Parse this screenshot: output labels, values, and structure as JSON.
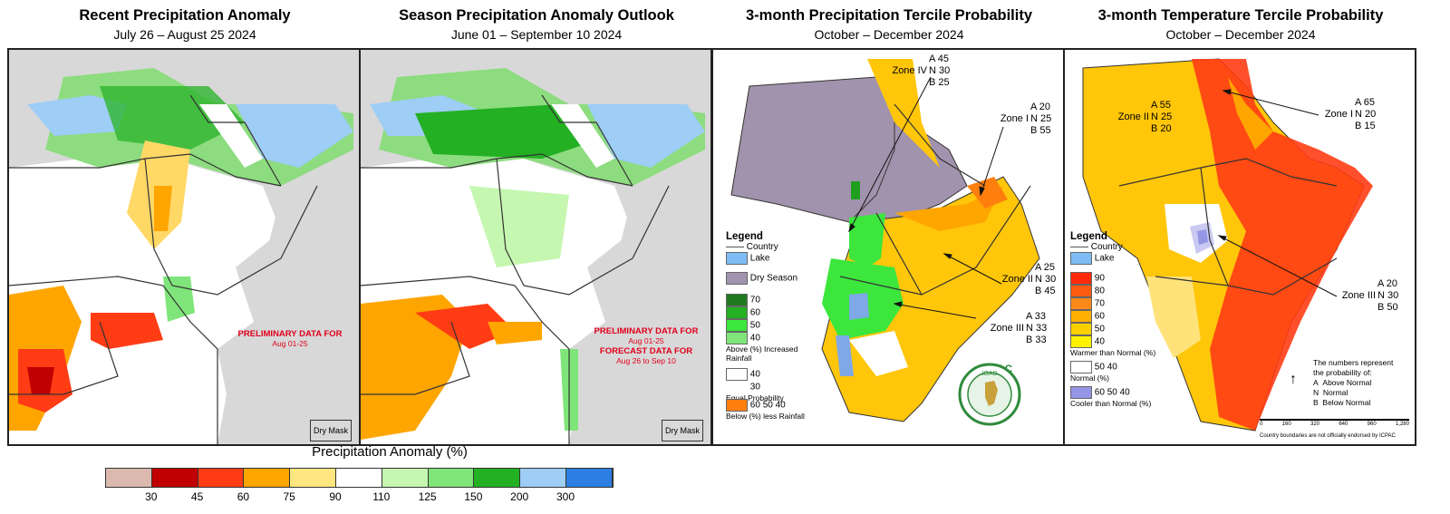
{
  "panels": [
    {
      "title": "Recent Precipitation Anomaly",
      "subtitle": "July 26 – August 25 2024",
      "note_title": "PRELIMINARY DATA FOR",
      "note_range": "Aug 01-25",
      "dry_mask": "Dry Mask"
    },
    {
      "title": "Season Precipitation Anomaly Outlook",
      "subtitle": "June 01 – September 10 2024",
      "note_title": "PRELIMINARY DATA FOR",
      "note_range": "Aug 01-25",
      "note2_title": "FORECAST DATA FOR",
      "note2_range": "Aug 26 to Sep 10",
      "dry_mask": "Dry Mask"
    },
    {
      "title": "3-month Precipitation Tercile Probability",
      "subtitle": "October – December 2024",
      "legend": {
        "title": "Legend",
        "country": "Country",
        "lake": "Lake",
        "dry": "Dry Season",
        "above_vals": [
          "70",
          "60",
          "50",
          "40"
        ],
        "above_label": "Above (%) Increased Rainfall",
        "equal_vals": [
          "40",
          "30"
        ],
        "equal_label": "Equal Probability",
        "below_vals": [
          "60",
          "50",
          "40"
        ],
        "below_label": "Below (%) less Rainfall"
      },
      "zones": [
        {
          "name": "Zone IV",
          "a": "A 45",
          "n": "N 30",
          "b": "B 25"
        },
        {
          "name": "Zone I",
          "a": "A 20",
          "n": "N 25",
          "b": "B 55"
        },
        {
          "name": "Zone II",
          "a": "A 25",
          "n": "N 30",
          "b": "B 45"
        },
        {
          "name": "Zone III",
          "a": "A 33",
          "n": "N 33",
          "b": "B 33"
        }
      ],
      "logo_top": "IGAD",
      "logo_bottom": "ICPAC"
    },
    {
      "title": "3-month Temperature Tercile Probability",
      "subtitle": "October – December 2024",
      "legend": {
        "title": "Legend",
        "country": "Country",
        "lake": "Lake",
        "warm_vals": [
          "90",
          "80",
          "70",
          "60",
          "50",
          "40"
        ],
        "warm_label": "Warmer than Normal (%)",
        "normal_vals": [
          "50",
          "40"
        ],
        "normal_label": "Normal (%)",
        "cool_vals": [
          "60",
          "50",
          "40"
        ],
        "cool_label": "Cooler than Normal (%)"
      },
      "zones": [
        {
          "name": "Zone II",
          "a": "A 55",
          "n": "N 25",
          "b": "B 20"
        },
        {
          "name": "Zone I",
          "a": "A 65",
          "n": "N 20",
          "b": "B 15"
        },
        {
          "name": "Zone III",
          "a": "A 20",
          "n": "N 30",
          "b": "B 50"
        }
      ],
      "explain": {
        "line1": "The numbers represent",
        "line2": "the probability of:",
        "a": "Above Normal",
        "n": "Normal",
        "b": "Below Normal"
      },
      "scale": [
        "0",
        "160",
        "320",
        "640",
        "960",
        "1,280"
      ],
      "disclaimer": "Country boundaries are not officially endorsed by ICPAC"
    }
  ],
  "colorbar": {
    "title": "Precipitation Anomaly (%)",
    "ticks": [
      "30",
      "45",
      "60",
      "75",
      "90",
      "110",
      "125",
      "150",
      "200",
      "300"
    ],
    "colors": [
      "#dbb9ae",
      "#c00000",
      "#ff3c14",
      "#ffa500",
      "#ffe680",
      "#ffffff",
      "#c6f7b0",
      "#7fe57a",
      "#23b023",
      "#9ecdf5",
      "#2d7fe3"
    ]
  }
}
